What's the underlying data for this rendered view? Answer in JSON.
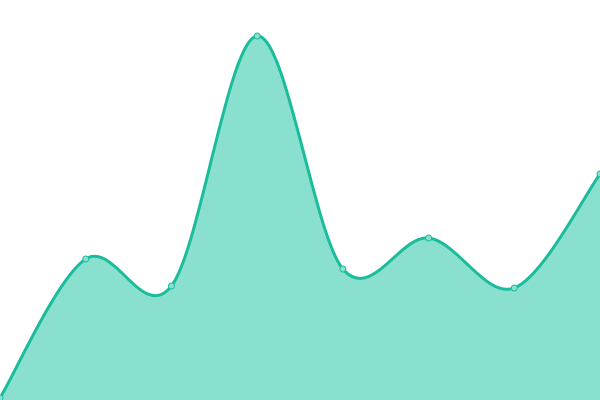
{
  "chart_data": {
    "type": "area",
    "x": [
      0,
      1,
      2,
      3,
      4,
      5,
      6,
      7
    ],
    "values": [
      2,
      141,
      114,
      364,
      131,
      162,
      112,
      226
    ],
    "ylim": [
      0,
      400
    ],
    "grid": false,
    "legend": "none",
    "smooth": true,
    "colors": {
      "line": "#1abc9c",
      "fill": "#8ae0cf",
      "point": "#8ae0cf"
    }
  }
}
